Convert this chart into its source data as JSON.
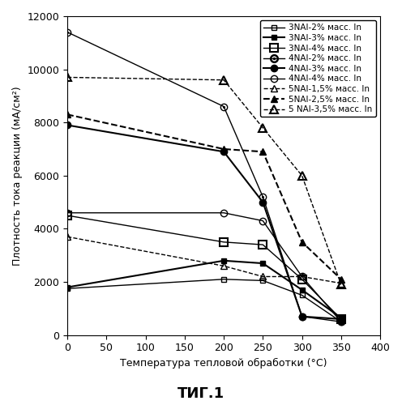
{
  "xlabel": "Температура тепловой обработки (°C)",
  "ylabel": "Плотность тока реакции (мА/см²)",
  "xlim": [
    0,
    400
  ],
  "ylim": [
    0,
    12000
  ],
  "xticks": [
    0,
    50,
    100,
    150,
    200,
    250,
    300,
    350,
    400
  ],
  "yticks": [
    0,
    2000,
    4000,
    6000,
    8000,
    10000,
    12000
  ],
  "series": [
    {
      "label": "3NAI-2% масс. In",
      "x": [
        0,
        200,
        250,
        300,
        350
      ],
      "y": [
        1750,
        2100,
        2050,
        1500,
        500
      ],
      "linestyle": "-",
      "marker": "s",
      "color": "black",
      "fillstyle": "none",
      "markersize": 5,
      "linewidth": 1.0,
      "markeredgewidth": 1.0
    },
    {
      "label": "3NAI-3% масс. In",
      "x": [
        0,
        200,
        250,
        300,
        350
      ],
      "y": [
        1800,
        2800,
        2700,
        1700,
        650
      ],
      "linestyle": "-",
      "marker": "s",
      "color": "black",
      "fillstyle": "full",
      "markersize": 5,
      "linewidth": 1.5,
      "markeredgewidth": 1.0
    },
    {
      "label": "3NAI-4% масс. In",
      "x": [
        0,
        200,
        250,
        300,
        350
      ],
      "y": [
        4500,
        3500,
        3400,
        2100,
        600
      ],
      "linestyle": "-",
      "marker": "s",
      "color": "black",
      "fillstyle": "none",
      "markersize": 7,
      "linewidth": 1.0,
      "markeredgewidth": 1.5
    },
    {
      "label": "4NAI-2% масс. In",
      "x": [
        0,
        200,
        250,
        300,
        350
      ],
      "y": [
        11400,
        8600,
        5200,
        700,
        500
      ],
      "linestyle": "-",
      "marker": "o",
      "color": "black",
      "fillstyle": "none",
      "markersize": 6,
      "linewidth": 1.0,
      "markeredgewidth": 1.0,
      "special_marker": "circle_dot"
    },
    {
      "label": "4NAI-3% масс. In",
      "x": [
        0,
        200,
        250,
        300,
        350
      ],
      "y": [
        7900,
        6900,
        5000,
        700,
        600
      ],
      "linestyle": "-",
      "marker": "o",
      "color": "black",
      "fillstyle": "full",
      "markersize": 6,
      "linewidth": 1.5,
      "markeredgewidth": 1.0
    },
    {
      "label": "4NAI-4% масс. In",
      "x": [
        0,
        200,
        250,
        300,
        350
      ],
      "y": [
        4600,
        4600,
        4300,
        2200,
        500
      ],
      "linestyle": "-",
      "marker": "o",
      "color": "black",
      "fillstyle": "none",
      "markersize": 6,
      "linewidth": 1.0,
      "markeredgewidth": 1.0
    },
    {
      "label": "5NAI-1,5% масс. In",
      "x": [
        0,
        200,
        250,
        300,
        350
      ],
      "y": [
        3700,
        2600,
        2200,
        2200,
        1950
      ],
      "linestyle": "--",
      "marker": "^",
      "color": "black",
      "fillstyle": "none",
      "markersize": 6,
      "linewidth": 1.0,
      "markeredgewidth": 1.0
    },
    {
      "label": "5NAI-2,5% масс. In",
      "x": [
        0,
        200,
        250,
        300,
        350
      ],
      "y": [
        8300,
        7000,
        6900,
        3500,
        2100
      ],
      "linestyle": "--",
      "marker": "^",
      "color": "black",
      "fillstyle": "full",
      "markersize": 6,
      "linewidth": 1.5,
      "markeredgewidth": 1.0
    },
    {
      "label": "5 NAI-3,5% масс. In",
      "x": [
        0,
        200,
        250,
        300,
        350
      ],
      "y": [
        9700,
        9600,
        7800,
        6000,
        1900
      ],
      "linestyle": "--",
      "marker": "^",
      "color": "black",
      "fillstyle": "none",
      "markersize": 7,
      "linewidth": 1.0,
      "markeredgewidth": 1.5
    }
  ],
  "background_color": "#ffffff",
  "fig_title": "ΤИГ.1",
  "title_fontsize": 13,
  "axis_fontsize": 9,
  "tick_fontsize": 9,
  "legend_fontsize": 7.5
}
